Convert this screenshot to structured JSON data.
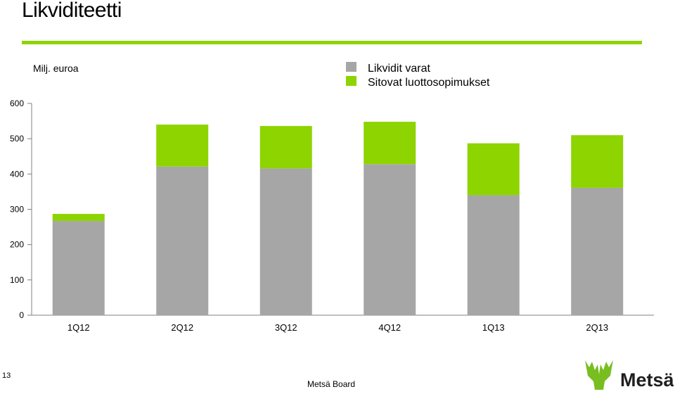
{
  "slide": {
    "title": "Likviditeetti",
    "page_number": "13",
    "footer": "Metsä Board",
    "logo_text": "Metsä"
  },
  "colors": {
    "accent": "#8DD400",
    "grey_bar": "#A6A6A6",
    "logo_green": "#78BE20",
    "logo_dark": "#1F1F1F"
  },
  "chart_data": {
    "type": "bar",
    "stacked": true,
    "unit_label": "Milj. euroa",
    "categories": [
      "1Q12",
      "2Q12",
      "3Q12",
      "4Q12",
      "1Q13",
      "2Q13"
    ],
    "series": [
      {
        "name": "Likvidit varat",
        "color": "#A6A6A6",
        "values": [
          267,
          421,
          416,
          428,
          340,
          361
        ]
      },
      {
        "name": "Sitovat luottosopimukset",
        "color": "#8DD400",
        "values": [
          20,
          119,
          120,
          120,
          147,
          149
        ]
      }
    ],
    "ylim": [
      0,
      600
    ],
    "yticks": [
      "0",
      "100",
      "200",
      "300",
      "400",
      "500",
      "600"
    ],
    "legend_position": "top-right",
    "grid": false
  }
}
